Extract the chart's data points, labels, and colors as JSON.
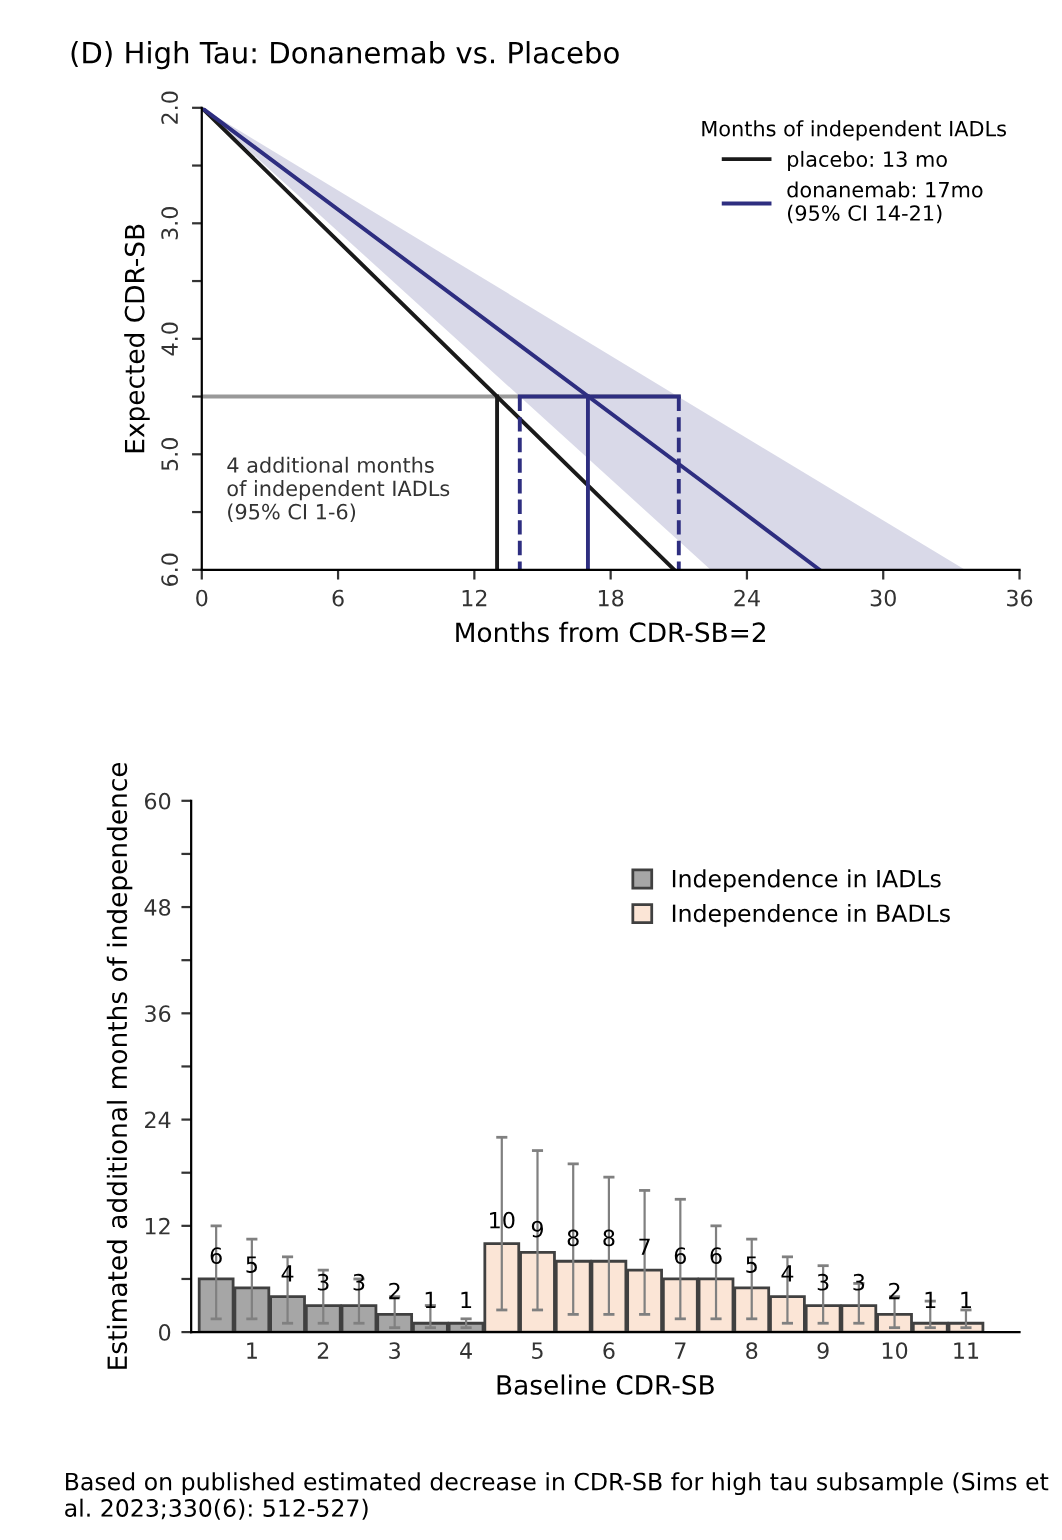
{
  "chart_data": [
    {
      "type": "line",
      "title": "(D) High Tau: Donanemab vs. Placebo",
      "xlabel": "Months from CDR-SB=2",
      "ylabel": "Expected CDR-SB",
      "legend_title": "Months of independent IADLs",
      "legend": "top right",
      "xlim": [
        0,
        36
      ],
      "xticks": [
        0,
        6,
        12,
        18,
        24,
        30,
        36
      ],
      "ylim": [
        6.0,
        2.0
      ],
      "yticks": [
        {
          "value": 2.0,
          "label": "2.0"
        },
        {
          "value": 2.5,
          "label": null
        },
        {
          "value": 3.0,
          "label": "3.0"
        },
        {
          "value": 3.5,
          "label": null
        },
        {
          "value": 4.0,
          "label": "4.0"
        },
        {
          "value": 4.5,
          "label": null
        },
        {
          "value": 5.0,
          "label": "5.0"
        },
        {
          "value": 5.5,
          "label": null
        },
        {
          "value": 6.0,
          "label": "6.0"
        }
      ],
      "grid": false,
      "series": [
        {
          "color": "#999999",
          "x": [
            0,
            21
          ],
          "values": [
            4.5,
            4.5
          ]
        },
        {
          "name": "placebo: 13 mo",
          "color": "#1a1a1a",
          "x": [
            0,
            20.8
          ],
          "values": [
            2.0,
            6.0
          ]
        },
        {
          "name": "donanemab: 17mo\n(95% CI 14-21)",
          "color": "#2e2e80",
          "x": [
            0,
            22.4,
            27.2,
            33.6
          ],
          "values": [
            2.0,
            5.29,
            6.0,
            null
          ],
          "lower": [
            2.0,
            4.67,
            5.24,
            6.0
          ],
          "upper": [
            2.0,
            6.0,
            6.0,
            6.0
          ]
        },
        {
          "color": "#2e2e80",
          "x": [
            14,
            21
          ],
          "values": [
            4.5,
            4.5
          ]
        },
        {
          "color": "#1a1a1a",
          "x": [
            13,
            13
          ],
          "values": [
            4.5,
            6.0
          ]
        },
        {
          "color": "#2e2e80",
          "x": [
            17,
            17
          ],
          "values": [
            4.5,
            6.0
          ]
        },
        {
          "color": "#2e2e80",
          "x": [
            14,
            14
          ],
          "values": [
            4.5,
            6.0
          ],
          "line_style": "dashed"
        },
        {
          "color": "#2e2e80",
          "x": [
            21,
            21
          ],
          "values": [
            4.5,
            6.0
          ],
          "line_style": "dashed"
        }
      ],
      "annotations": [
        "4 additional months\nof independent IADLs\n(95% CI 1-6)"
      ]
    },
    {
      "type": "bar",
      "xlabel": "Baseline CDR-SB",
      "ylabel": "Estimated additional months of independence",
      "legend": "top right",
      "data_labels": true,
      "grid": false,
      "ylim": [
        0,
        60
      ],
      "yticks": [
        0,
        {
          "value": 6,
          "label": null
        },
        12,
        {
          "value": 18,
          "label": null
        },
        24,
        {
          "value": 30,
          "label": null
        },
        36,
        {
          "value": 42,
          "label": null
        },
        48,
        {
          "value": 54,
          "label": null
        },
        60
      ],
      "categories": [
        null,
        "1",
        null,
        "2",
        null,
        "3",
        null,
        "4",
        null,
        "5",
        null,
        "6",
        null,
        "7",
        null,
        "8",
        null,
        "9",
        null,
        "10",
        null,
        "11"
      ],
      "series": [
        {
          "name": "Independence in IADLs",
          "color": "#a6a6a6",
          "values": [
            6,
            5,
            4,
            3,
            3,
            2,
            1,
            1,
            null,
            null,
            null,
            null,
            null,
            null,
            null,
            null,
            null,
            null,
            null,
            null,
            null,
            null
          ],
          "errors": [
            [
              1.5,
              12
            ],
            [
              1.5,
              10.5
            ],
            [
              1,
              8.5
            ],
            [
              1,
              7
            ],
            [
              1,
              6
            ],
            [
              0.5,
              4
            ],
            [
              0.5,
              3
            ],
            [
              0.5,
              1.5
            ],
            null,
            null,
            null,
            null,
            null,
            null,
            null,
            null,
            null,
            null,
            null,
            null,
            null,
            null
          ]
        },
        {
          "name": "Independence in BADLs",
          "color": "#fbe5d6",
          "values": [
            null,
            null,
            null,
            null,
            null,
            null,
            null,
            null,
            10,
            9,
            8,
            8,
            7,
            6,
            6,
            5,
            4,
            3,
            3,
            2,
            1,
            1
          ],
          "errors": [
            null,
            null,
            null,
            null,
            null,
            null,
            null,
            null,
            [
              2.5,
              22
            ],
            [
              2.5,
              20.5
            ],
            [
              2,
              19
            ],
            [
              2,
              17.5
            ],
            [
              2,
              16
            ],
            [
              1.5,
              15
            ],
            [
              1.5,
              12
            ],
            [
              1.5,
              10.5
            ],
            [
              1,
              8.5
            ],
            [
              1,
              7.5
            ],
            [
              1,
              5.5
            ],
            [
              0.5,
              4
            ],
            [
              0.5,
              3.5
            ],
            [
              0.5,
              2.5
            ]
          ]
        }
      ],
      "annotations": [
        "Based on published estimated decrease in CDR-SB for high tau subsample (Sims et al. 2023;330(6): 512-527)"
      ]
    }
  ]
}
